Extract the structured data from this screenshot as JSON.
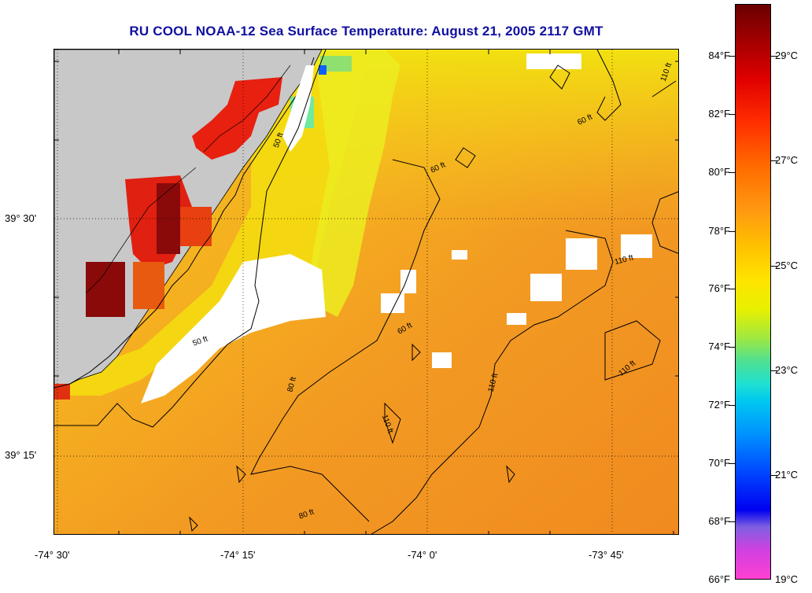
{
  "title": "RU COOL  NOAA-12  Sea Surface Temperature:  August 21, 2005 2117 GMT",
  "lon_labels": [
    "-74° 30'",
    "-74° 15'",
    "-74° 0'",
    "-73° 45'"
  ],
  "lat_labels": [
    "39° 30'",
    "39° 15'"
  ],
  "colorbar": {
    "fahrenheit": [
      "84°F",
      "82°F",
      "80°F",
      "78°F",
      "76°F",
      "74°F",
      "72°F",
      "70°F",
      "68°F",
      "66°F"
    ],
    "celsius": [
      "29°C",
      "27°C",
      "25°C",
      "23°C",
      "21°C",
      "19°C"
    ]
  },
  "contours": [
    "50 ft",
    "60 ft",
    "80 ft",
    "110 ft"
  ],
  "contour_labels": [
    {
      "id": "c50a",
      "text": "50 ft"
    },
    {
      "id": "c50b",
      "text": "50 ft"
    },
    {
      "id": "c60a",
      "text": "60 ft"
    },
    {
      "id": "c60b",
      "text": "60 ft"
    },
    {
      "id": "c60c",
      "text": "60 ft"
    },
    {
      "id": "c80a",
      "text": "80 ft"
    },
    {
      "id": "c80b",
      "text": "80 ft"
    },
    {
      "id": "c110a",
      "text": "110 ft"
    },
    {
      "id": "c110b",
      "text": "110 ft"
    },
    {
      "id": "c110c",
      "text": "110 ft"
    },
    {
      "id": "c110d",
      "text": "110 ft"
    },
    {
      "id": "c110e",
      "text": "110 ft"
    }
  ],
  "colors": {
    "land": "#c8c8c8",
    "cloud": "#ffffff",
    "warm": "#f2a020",
    "yellow": "#f5d200",
    "hot_red": "#e82010",
    "dark_red": "#8a0a0a",
    "title": "#1010a0"
  }
}
